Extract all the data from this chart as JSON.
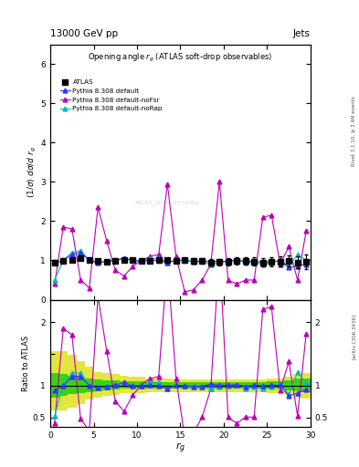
{
  "title_top": "13000 GeV pp",
  "title_top_right": "Jets",
  "plot_title": "Opening angle r_g (ATLAS soft-drop observables)",
  "ylabel_main": "(1/σ) dσ/d r_g",
  "ylabel_ratio": "Ratio to ATLAS",
  "xlabel": "r_g",
  "right_label_top": "Rivet 3.1.10, ≥ 3.4M events",
  "right_label_bottom": "[arXiv:1306.3436]",
  "watermark": "ATLAS_2019_I1772062",
  "xlim": [
    0,
    30
  ],
  "ylim_main": [
    0,
    6.5
  ],
  "ylim_ratio": [
    0.35,
    2.35
  ],
  "atlas_x": [
    0.5,
    1.5,
    2.5,
    3.5,
    4.5,
    5.5,
    6.5,
    7.5,
    8.5,
    9.5,
    10.5,
    11.5,
    12.5,
    13.5,
    14.5,
    15.5,
    16.5,
    17.5,
    18.5,
    19.5,
    20.5,
    21.5,
    22.5,
    23.5,
    24.5,
    25.5,
    26.5,
    27.5,
    28.5,
    29.5
  ],
  "atlas_y": [
    0.95,
    0.98,
    1.0,
    1.05,
    1.0,
    0.98,
    0.97,
    0.99,
    1.0,
    1.0,
    0.98,
    0.99,
    1.0,
    1.0,
    0.99,
    1.0,
    0.98,
    0.99,
    0.95,
    0.96,
    0.97,
    0.98,
    0.99,
    0.97,
    0.95,
    0.96,
    0.97,
    0.98,
    0.95,
    0.96
  ],
  "atlas_yerr": [
    0.05,
    0.04,
    0.04,
    0.04,
    0.04,
    0.04,
    0.04,
    0.04,
    0.04,
    0.04,
    0.05,
    0.05,
    0.05,
    0.06,
    0.06,
    0.06,
    0.07,
    0.07,
    0.08,
    0.08,
    0.09,
    0.09,
    0.1,
    0.1,
    0.11,
    0.12,
    0.13,
    0.14,
    0.15,
    0.18
  ],
  "pythia_default_y": [
    0.93,
    1.0,
    1.15,
    1.2,
    1.0,
    0.95,
    0.97,
    1.0,
    1.05,
    1.0,
    0.98,
    1.0,
    1.0,
    0.95,
    1.0,
    1.0,
    0.97,
    0.98,
    0.98,
    0.97,
    0.98,
    1.0,
    0.98,
    0.98,
    0.95,
    0.97,
    0.98,
    0.82,
    0.85,
    0.9
  ],
  "pythia_noFsr_y": [
    0.4,
    1.85,
    1.8,
    0.5,
    0.3,
    2.35,
    1.5,
    0.75,
    0.6,
    0.85,
    1.0,
    1.1,
    1.15,
    2.95,
    1.1,
    0.2,
    0.25,
    0.5,
    0.9,
    3.0,
    0.5,
    0.4,
    0.5,
    0.5,
    2.1,
    2.15,
    0.9,
    1.35,
    0.5,
    1.75
  ],
  "pythia_noRap_y": [
    0.5,
    1.0,
    1.2,
    1.25,
    1.0,
    0.95,
    0.97,
    1.0,
    1.05,
    1.0,
    0.98,
    1.05,
    1.05,
    0.95,
    1.0,
    1.0,
    0.97,
    0.98,
    0.9,
    0.95,
    0.97,
    1.0,
    0.95,
    0.95,
    0.9,
    0.95,
    1.0,
    0.85,
    1.15,
    1.0
  ],
  "ratio_default_y": [
    0.93,
    1.0,
    1.15,
    1.15,
    1.0,
    0.97,
    0.99,
    1.01,
    1.05,
    1.0,
    1.0,
    1.01,
    1.0,
    0.95,
    1.01,
    1.0,
    0.99,
    0.99,
    1.03,
    1.01,
    1.01,
    1.02,
    0.99,
    1.01,
    1.0,
    1.01,
    1.01,
    0.84,
    0.89,
    0.94
  ],
  "ratio_noFsr_y": [
    0.42,
    1.9,
    1.8,
    0.48,
    0.3,
    2.4,
    1.55,
    0.76,
    0.6,
    0.85,
    1.02,
    1.11,
    1.15,
    2.95,
    1.11,
    0.2,
    0.26,
    0.51,
    0.95,
    3.12,
    0.51,
    0.41,
    0.51,
    0.51,
    2.2,
    2.24,
    0.93,
    1.38,
    0.53,
    1.82
  ],
  "ratio_noRap_y": [
    0.53,
    1.02,
    1.2,
    1.2,
    1.0,
    0.97,
    1.0,
    1.01,
    1.05,
    1.0,
    1.0,
    1.06,
    1.05,
    0.95,
    1.01,
    1.0,
    0.99,
    0.99,
    0.95,
    0.99,
    1.0,
    1.02,
    0.96,
    0.98,
    0.95,
    0.99,
    1.03,
    0.87,
    1.21,
    1.04
  ],
  "ratio_band_yellow_low": [
    0.62,
    0.62,
    0.65,
    0.72,
    0.78,
    0.82,
    0.84,
    0.86,
    0.88,
    0.88,
    0.88,
    0.9,
    0.9,
    0.9,
    0.9,
    0.9,
    0.9,
    0.9,
    0.9,
    0.9,
    0.9,
    0.9,
    0.9,
    0.9,
    0.9,
    0.88,
    0.88,
    0.85,
    0.82,
    0.8
  ],
  "ratio_band_yellow_high": [
    1.55,
    1.55,
    1.48,
    1.38,
    1.3,
    1.22,
    1.2,
    1.18,
    1.16,
    1.14,
    1.14,
    1.12,
    1.12,
    1.12,
    1.1,
    1.1,
    1.1,
    1.1,
    1.1,
    1.1,
    1.1,
    1.1,
    1.1,
    1.1,
    1.1,
    1.12,
    1.12,
    1.15,
    1.18,
    1.2
  ],
  "ratio_band_green_low": [
    0.82,
    0.84,
    0.87,
    0.88,
    0.9,
    0.92,
    0.93,
    0.94,
    0.95,
    0.95,
    0.95,
    0.96,
    0.96,
    0.96,
    0.96,
    0.96,
    0.96,
    0.96,
    0.96,
    0.96,
    0.96,
    0.96,
    0.96,
    0.96,
    0.96,
    0.95,
    0.95,
    0.93,
    0.91,
    0.9
  ],
  "ratio_band_green_high": [
    1.2,
    1.18,
    1.16,
    1.14,
    1.12,
    1.1,
    1.09,
    1.08,
    1.07,
    1.07,
    1.07,
    1.06,
    1.06,
    1.06,
    1.06,
    1.06,
    1.06,
    1.06,
    1.06,
    1.06,
    1.06,
    1.06,
    1.06,
    1.06,
    1.06,
    1.07,
    1.07,
    1.09,
    1.11,
    1.12
  ],
  "color_atlas": "#000000",
  "color_default": "#3333ff",
  "color_noFsr": "#bb00bb",
  "color_noRap": "#00bbbb",
  "color_green_band": "#00cc00",
  "color_yellow_band": "#dddd00"
}
